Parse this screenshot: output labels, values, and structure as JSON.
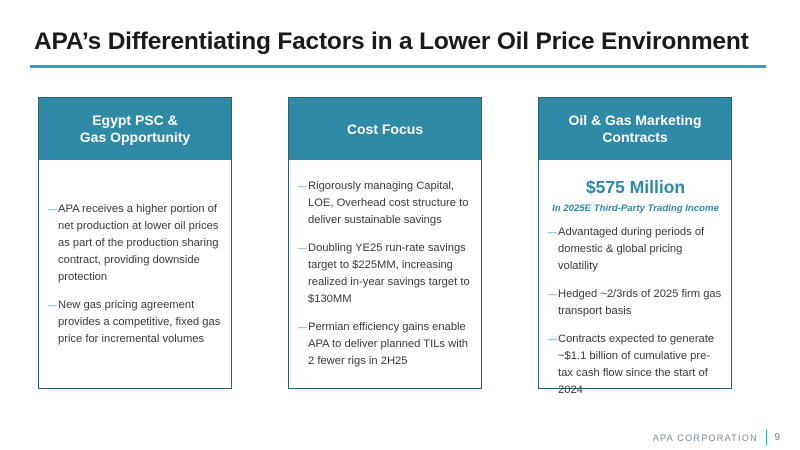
{
  "slide": {
    "title": "APA’s Differentiating Factors in a Lower Oil Price Environment"
  },
  "cards": [
    {
      "header": "Egypt PSC &\nGas Opportunity",
      "bullets": [
        "APA receives a higher portion of net production at lower oil prices as part of the production sharing contract, providing downside protection",
        "New gas pricing agreement provides a competitive, fixed gas price for incremental volumes"
      ]
    },
    {
      "header": "Cost Focus",
      "bullets": [
        "Rigorously managing Capital, LOE, Overhead cost structure to deliver sustainable savings",
        "Doubling YE25 run-rate savings target to $225MM, increasing realized in-year savings target to $130MM",
        "Permian efficiency gains enable APA to deliver planned TILs with 2 fewer rigs in 2H25"
      ]
    },
    {
      "header": "Oil & Gas Marketing\nContracts",
      "highlight_value": "$575 Million",
      "highlight_caption": "In 2025E Third-Party Trading Income",
      "bullets": [
        "Advantaged during periods of domestic & global pricing volatility",
        "Hedged ~2/3rds of 2025 firm gas transport basis",
        "Contracts expected to generate ~$1.1 billion of cumulative pre-tax cash flow since the start of 2024"
      ]
    }
  ],
  "footer": {
    "company": "APA CORPORATION",
    "page_number": "9"
  },
  "colors": {
    "accent": "#2aa5b8",
    "header_fill": "#2e8aa6",
    "card_border": "#2f5f75"
  }
}
